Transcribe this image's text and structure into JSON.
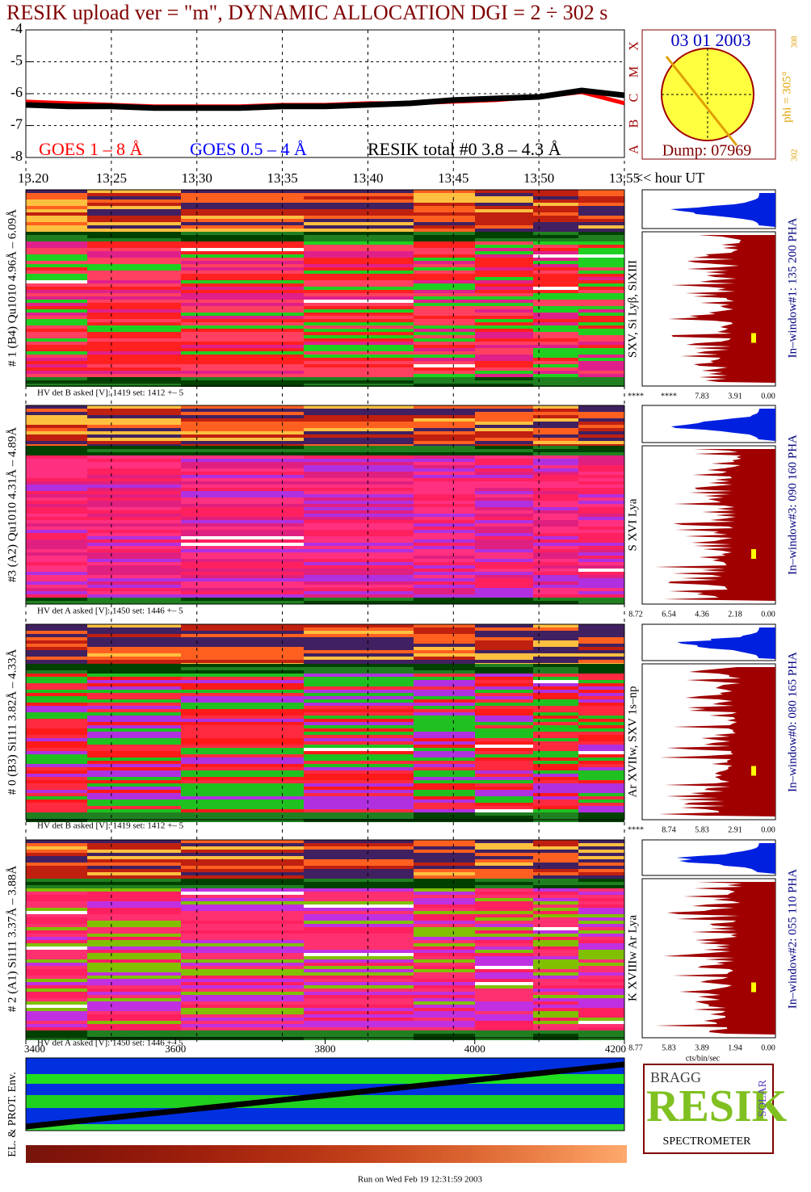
{
  "chart_data": [
    {
      "type": "line",
      "title": "RESIK upload ver = \"m\", DYNAMIC ALLOCATION  DGI =   2 ÷ 302 s",
      "x_label": "<< hour UT",
      "x": [
        13.2,
        13.225,
        13.25,
        13.275,
        13.3,
        13.325,
        13.35,
        13.375,
        13.4,
        13.425,
        13.45,
        13.475,
        13.5,
        13.525,
        13.55
      ],
      "xlim": [
        13.2,
        13.55
      ],
      "xticks": [
        {
          "value": 13.2,
          "label": "13.20"
        },
        13.25,
        {
          "value": 13.3,
          "label": "13.30"
        },
        13.35,
        {
          "value": 13.4,
          "label": "13.40"
        },
        13.45,
        {
          "value": 13.5,
          "label": "13.50"
        },
        13.55
      ],
      "ylim": [
        -8,
        -4
      ],
      "yticks": [
        -4,
        -5,
        -6,
        -7,
        -8
      ],
      "flare_classes": [
        "A",
        "B",
        "C",
        "M",
        "X"
      ],
      "series": [
        {
          "name": "GOES 1 – 8 Å",
          "color": "#ff0000",
          "values": [
            -6.25,
            -6.3,
            -6.35,
            -6.4,
            -6.4,
            -6.4,
            -6.35,
            -6.35,
            -6.3,
            -6.3,
            -6.25,
            -6.2,
            -6.1,
            -5.95,
            -6.3
          ]
        },
        {
          "name": "GOES 0.5 – 4 Å",
          "color": "#0000ff",
          "values": [
            null,
            null,
            null,
            null,
            null,
            null,
            null,
            null,
            null,
            null,
            null,
            null,
            null,
            null,
            null
          ]
        },
        {
          "name": "RESIK total #0  3.8 – 4.3 Å",
          "color": "#000000",
          "values": [
            -6.35,
            -6.4,
            -6.4,
            -6.45,
            -6.45,
            -6.45,
            -6.4,
            -6.4,
            -6.35,
            -6.3,
            -6.2,
            -6.15,
            -6.1,
            -5.9,
            -6.05
          ]
        }
      ]
    },
    {
      "type": "strip",
      "y_label": "EL. & PROT. Env.",
      "xlim": [
        3400,
        4200
      ],
      "xticks": [
        3400,
        3600,
        3800,
        4000,
        4200
      ]
    }
  ],
  "sun": {
    "date": "03 01 2003",
    "phi": "phi = 305°",
    "phi_max": "308",
    "phi_min": "302",
    "dump": "Dump: 07969"
  },
  "panels": [
    {
      "label": "# 1 (B4) Qu1010 4.96Å – 6.09Å",
      "hv": "HV det B asked [V]:  1419 set:  1412 +–    5",
      "lines": "SXV, Si Lyβ, SiXIII",
      "window": "In–window#1:  135 200 PHA",
      "pha_ticks": [
        "****",
        "****",
        "7.83",
        "3.91",
        "0.00"
      ]
    },
    {
      "label": "#3 (A2) Qu1010  4.31Å – 4.89Å",
      "hv": "HV det A asked [V]:  1450 set:  1446 +–    5",
      "lines": "S XVI Lya",
      "window": "In–window#3:  090 160 PHA",
      "pha_ticks": [
        "8.72",
        "6.54",
        "4.36",
        "2.18",
        "0.00"
      ]
    },
    {
      "label": "# 0 (B3) Si111  3.82Å – 4.33Å",
      "hv": "HV det B asked [V]:  1419 set:  1412 +–    5",
      "lines": "Ar XVIIw,  SXV 1s–np",
      "window": "In–window#0:  080 165 PHA",
      "pha_ticks": [
        "****",
        "8.74",
        "5.83",
        "2.91",
        "0.00"
      ]
    },
    {
      "label": "# 2 (A1) Si111  3.37Å –  3.88Å",
      "hv": "HV det A asked [V]:  1450 set:  1446 +–    5",
      "lines": "K XVIIIw  Ar Lya",
      "window": "In–window#2:  055 110 PHA",
      "pha_ticks": [
        "8.77",
        "5.83",
        "3.89",
        "1.94",
        "0.00"
      ],
      "pha_unit": "cts/bin/sec"
    }
  ],
  "logo": {
    "top": "BRAGG",
    "middle": "RESIK",
    "side": "SOLAR",
    "bottom": "SPECTROMETER"
  },
  "footer": "Run on Wed Feb 19 12:31:59 2003"
}
